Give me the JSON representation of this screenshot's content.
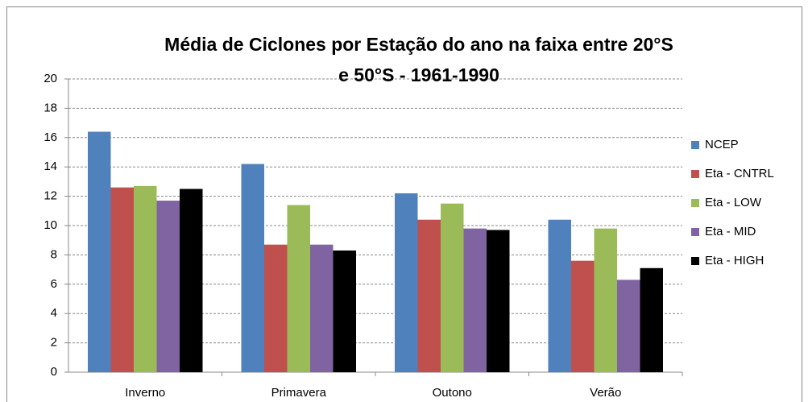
{
  "chart_data": {
    "type": "bar",
    "title": "Média de Ciclones por Estação do ano na faixa entre 20°S e 50°S - 1961-1990",
    "categories": [
      "Inverno",
      "Primavera",
      "Outono",
      "Verão"
    ],
    "series": [
      {
        "name": "NCEP",
        "color": "#4f81bd",
        "values": [
          16.4,
          14.2,
          12.2,
          10.4
        ]
      },
      {
        "name": "Eta - CNTRL",
        "color": "#c0504d",
        "values": [
          12.6,
          8.7,
          10.4,
          7.6
        ]
      },
      {
        "name": "Eta - LOW",
        "color": "#9bbb59",
        "values": [
          12.7,
          11.4,
          11.5,
          9.8
        ]
      },
      {
        "name": "Eta - MID",
        "color": "#8064a2",
        "values": [
          11.7,
          8.7,
          9.8,
          6.3
        ]
      },
      {
        "name": "Eta - HIGH",
        "color": "#000000",
        "values": [
          12.5,
          8.3,
          9.7,
          7.1
        ]
      }
    ],
    "ylim": [
      0,
      20
    ],
    "yticks": [
      0,
      2,
      4,
      6,
      8,
      10,
      12,
      14,
      16,
      18,
      20
    ],
    "grid": true,
    "legend": "right"
  }
}
